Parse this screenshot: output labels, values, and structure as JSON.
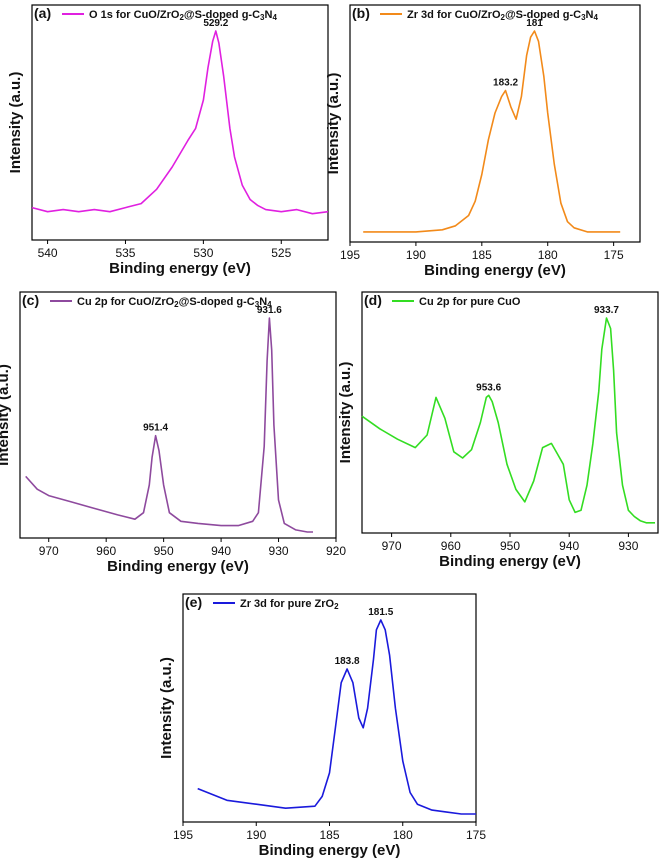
{
  "chart_data": [
    {
      "type": "line",
      "panel": "(a)",
      "legend": "O 1s for CuO/ZrO₂@S-doped g-C₃N₄",
      "xlabel": "Binding energy (eV)",
      "ylabel": "Intensity (a.u.)",
      "xlim": [
        541,
        522
      ],
      "ylim": [
        0,
        100
      ],
      "xticks": [
        540,
        535,
        530,
        525
      ],
      "color": "#e020e0",
      "annotations": [
        {
          "x": 529.2,
          "y": 100,
          "text": "529.2"
        }
      ],
      "series": [
        {
          "x": [
            541,
            540,
            539,
            538,
            537,
            536,
            535,
            534,
            533,
            532,
            531,
            530.5,
            530,
            529.7,
            529.4,
            529.2,
            529,
            528.7,
            528.3,
            528,
            527.5,
            527,
            526.5,
            526,
            525,
            524,
            523,
            522
          ],
          "values": [
            13,
            11,
            12,
            11,
            12,
            11,
            13,
            15,
            22,
            33,
            46,
            52,
            66,
            82,
            95,
            100,
            94,
            78,
            52,
            38,
            24,
            17,
            14,
            12,
            11,
            12,
            10,
            11
          ]
        }
      ]
    },
    {
      "type": "line",
      "panel": "(b)",
      "legend": "Zr 3d for CuO/ZrO₂@S-doped g-C₃N₄",
      "xlabel": "Binding energy (eV)",
      "ylabel": "Intensity (a.u.)",
      "xlim": [
        195,
        173
      ],
      "ylim": [
        0,
        100
      ],
      "xticks": [
        195,
        190,
        185,
        180,
        175
      ],
      "color": "#f28a1a",
      "annotations": [
        {
          "x": 183.2,
          "y": 71,
          "text": "183.2"
        },
        {
          "x": 181,
          "y": 100,
          "text": "181"
        }
      ],
      "series": [
        {
          "x": [
            194,
            192,
            190,
            188,
            187,
            186,
            185.5,
            185,
            184.5,
            184,
            183.5,
            183.2,
            182.8,
            182.4,
            182,
            181.6,
            181.3,
            181,
            180.7,
            180.3,
            180,
            179.5,
            179,
            178.5,
            178,
            177,
            176,
            174.5
          ],
          "values": [
            2,
            2,
            2,
            3,
            5,
            10,
            17,
            30,
            47,
            60,
            68,
            71,
            63,
            57,
            68,
            88,
            97,
            100,
            95,
            78,
            60,
            35,
            16,
            7,
            4,
            2,
            2,
            2
          ]
        }
      ]
    },
    {
      "type": "line",
      "panel": "(c)",
      "legend": "Cu 2p for CuO/ZrO₂@S-doped g-C₃N₄",
      "xlabel": "Binding energy (eV)",
      "ylabel": "Intensity (a.u.)",
      "xlim": [
        975,
        920
      ],
      "ylim": [
        0,
        100
      ],
      "xticks": [
        970,
        960,
        950,
        940,
        930,
        920
      ],
      "color": "#8e4a9e",
      "annotations": [
        {
          "x": 951.4,
          "y": 45,
          "text": "951.4"
        },
        {
          "x": 931.6,
          "y": 100,
          "text": "931.6"
        }
      ],
      "series": [
        {
          "x": [
            974,
            972,
            970,
            966,
            962,
            958,
            955,
            953.5,
            952.5,
            952,
            951.4,
            950.8,
            950,
            949,
            947,
            944,
            940,
            937,
            934.5,
            933.5,
            932.5,
            932,
            931.6,
            931.2,
            930.8,
            930,
            929,
            927,
            925,
            924
          ],
          "values": [
            26,
            20,
            17,
            14,
            11,
            8,
            6,
            9,
            22,
            35,
            45,
            38,
            22,
            9,
            5,
            4,
            3,
            3,
            5,
            9,
            40,
            80,
            100,
            85,
            50,
            15,
            4,
            1,
            0,
            0
          ]
        }
      ]
    },
    {
      "type": "line",
      "panel": "(d)",
      "legend": "Cu 2p for pure CuO",
      "xlabel": "Binding energy (eV)",
      "ylabel": "Intensity (a.u.)",
      "xlim": [
        975,
        925
      ],
      "ylim": [
        0,
        100
      ],
      "xticks": [
        970,
        960,
        950,
        940,
        930
      ],
      "color": "#33dd22",
      "annotations": [
        {
          "x": 953.6,
          "y": 63,
          "text": "953.6"
        },
        {
          "x": 933.7,
          "y": 100,
          "text": "933.7"
        }
      ],
      "series": [
        {
          "x": [
            975,
            972,
            969,
            966,
            964,
            962.5,
            961,
            959.5,
            958,
            956.5,
            955,
            954,
            953.6,
            953,
            952,
            950.5,
            949,
            947.5,
            946,
            944.5,
            943,
            942,
            941,
            940,
            939,
            938,
            937,
            936,
            935,
            934.5,
            933.7,
            933,
            932.5,
            932,
            931,
            930,
            929,
            928,
            927,
            925.5
          ],
          "values": [
            53,
            47,
            42,
            38,
            44,
            62,
            52,
            36,
            33,
            37,
            50,
            62,
            63,
            60,
            50,
            30,
            18,
            12,
            22,
            38,
            40,
            35,
            30,
            13,
            7,
            8,
            20,
            40,
            65,
            85,
            100,
            95,
            75,
            45,
            20,
            8,
            5,
            3,
            2,
            2
          ]
        }
      ]
    },
    {
      "type": "line",
      "panel": "(e)",
      "legend": "Zr 3d for pure ZrO₂",
      "xlabel": "Binding energy (eV)",
      "ylabel": "Intensity (a.u.)",
      "xlim": [
        195,
        175
      ],
      "ylim": [
        0,
        100
      ],
      "xticks": [
        195,
        190,
        185,
        180,
        175
      ],
      "color": "#1a1adc",
      "annotations": [
        {
          "x": 183.8,
          "y": 75,
          "text": "183.8"
        },
        {
          "x": 181.5,
          "y": 100,
          "text": "181.5"
        }
      ],
      "series": [
        {
          "x": [
            194,
            192,
            190,
            188,
            186,
            185.5,
            185,
            184.6,
            184.2,
            183.8,
            183.4,
            183,
            182.7,
            182.4,
            182,
            181.8,
            181.5,
            181.2,
            180.9,
            180.5,
            180,
            179.5,
            179,
            178,
            177,
            176,
            175
          ],
          "values": [
            14,
            8,
            6,
            4,
            5,
            10,
            22,
            45,
            68,
            75,
            68,
            50,
            45,
            55,
            80,
            95,
            100,
            95,
            82,
            55,
            28,
            12,
            6,
            3,
            2,
            1,
            1
          ]
        }
      ]
    }
  ]
}
